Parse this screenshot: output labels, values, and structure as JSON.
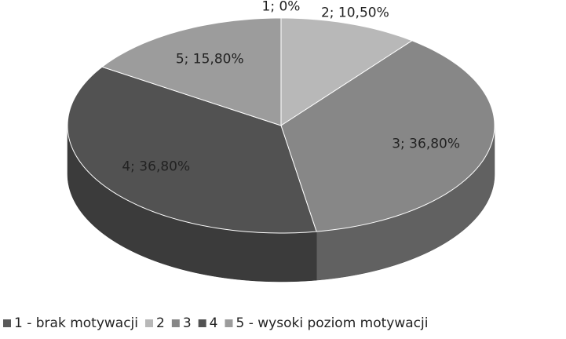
{
  "chart_data": {
    "type": "pie3d",
    "categories": [
      "1 - brak motywacji",
      "2",
      "3",
      "4",
      "5 - wysoki poziom motywacji"
    ],
    "values": [
      0,
      10.5,
      36.8,
      36.8,
      15.8
    ],
    "value_labels": [
      "1; 0%",
      "2; 10,50%",
      "3; 36,80%",
      "4; 36,80%",
      "5; 15,80%"
    ],
    "colors": [
      "#5a5a5a",
      "#b8b8b8",
      "#878787",
      "#525252",
      "#9c9c9c"
    ],
    "legend": "bottom"
  }
}
